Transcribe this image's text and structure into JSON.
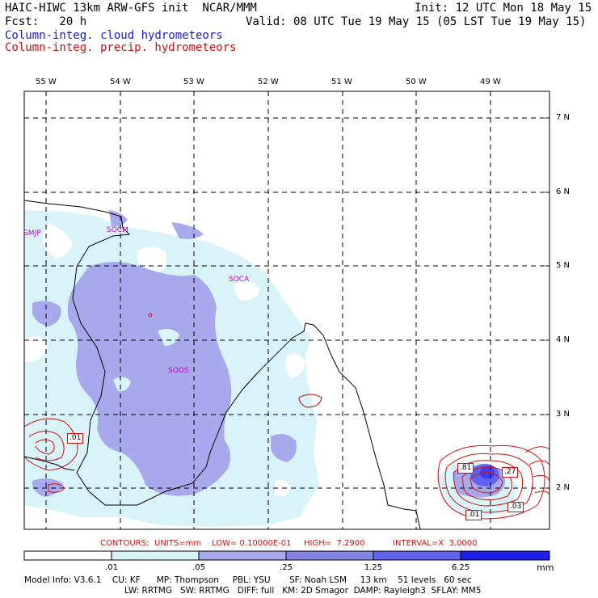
{
  "header": {
    "title_line": "HAIC-HIWC 13km ARW-GFS init  NCAR/MMM",
    "init": "Init: 12 UTC Mon 18 May 15",
    "fcst": "Fcst:   20 h",
    "valid": "Valid: 08 UTC Tue 19 May 15 (05 LST Tue 19 May 15)",
    "field_cloud": "Column-integ. cloud hydrometeors",
    "field_precip": "Column-integ. precip. hydrometeors"
  },
  "colors": {
    "cloud_label": "#1a1acc",
    "precip_label": "#cc1111",
    "shade_1": "#ffffff",
    "shade_2": "#d8f4f8",
    "shade_3": "#a8a8ec",
    "shade_4": "#8484e4",
    "shade_5": "#6262ec",
    "shade_6": "#4040f0",
    "shade_7": "#1f1fea",
    "contour": "#cc1111",
    "coast": "#000000",
    "station": "#cc00cc"
  },
  "map": {
    "lon_labels": [
      "55 W",
      "54 W",
      "53 W",
      "52 W",
      "51 W",
      "50 W",
      "49 W"
    ],
    "lat_labels": [
      "7 N",
      "6 N",
      "5 N",
      "4 N",
      "3 N",
      "2 N"
    ],
    "stations": [
      {
        "id": "SMJP"
      },
      {
        "id": "SOCM"
      },
      {
        "id": "SOCA"
      },
      {
        "id": "SOOS"
      }
    ],
    "contour_labels": [
      ".01",
      ".81",
      ".27",
      ".01",
      ".03"
    ]
  },
  "contours_line": {
    "prefix": "CONTOURS:",
    "units": "UNITS=mm",
    "low": "LOW= 0.10000E-01",
    "high": "HIGH=  7.2900",
    "interval": "INTERVAL=X  3.0000"
  },
  "colorbar": {
    "labels": [
      ".01",
      ".05",
      ".25",
      "1.25",
      "6.25"
    ],
    "unit": "mm"
  },
  "model_info": {
    "line1": "Model Info: V3.6.1    CU: KF      MP: Thompson     PBL: YSU       SF: Noah LSM     13 km    51 levels   60 sec",
    "line2": "LW: RRTMG   SW: RRTMG   DIFF: full   KM: 2D Smagor  DAMP: Rayleigh3  SFLAY: MM5"
  }
}
